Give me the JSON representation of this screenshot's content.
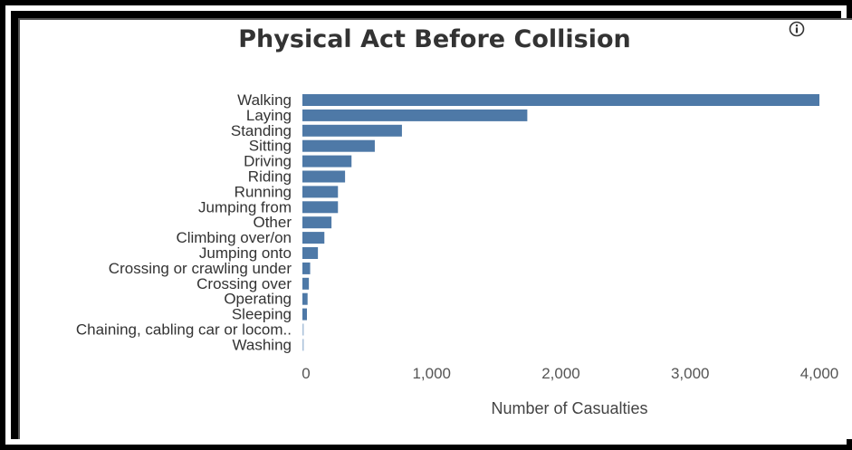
{
  "chart_data": {
    "type": "bar",
    "orientation": "horizontal",
    "title": "Physical Act Before Collision",
    "xlabel": "Number of Casualties",
    "ylabel": "",
    "xlim": [
      0,
      4000
    ],
    "x_ticks": [
      "0",
      "1,000",
      "2,000",
      "3,000",
      "4,000"
    ],
    "x_tick_values": [
      0,
      1000,
      2000,
      3000,
      4000
    ],
    "grid": false,
    "bar_color": "#4e79a7",
    "categories": [
      "Walking",
      "Laying",
      "Standing",
      "Sitting",
      "Driving",
      "Riding",
      "Running",
      "Jumping from",
      "Other",
      "Climbing over/on",
      "Jumping onto",
      "Crossing or crawling under",
      "Crossing  over",
      "Operating",
      "Sleeping",
      "Chaining, cabling car or locom..",
      "Washing"
    ],
    "values": [
      4000,
      1740,
      770,
      560,
      380,
      330,
      275,
      275,
      225,
      170,
      120,
      60,
      50,
      40,
      35,
      8,
      5
    ]
  },
  "header": {
    "info_icon": "info-icon"
  }
}
